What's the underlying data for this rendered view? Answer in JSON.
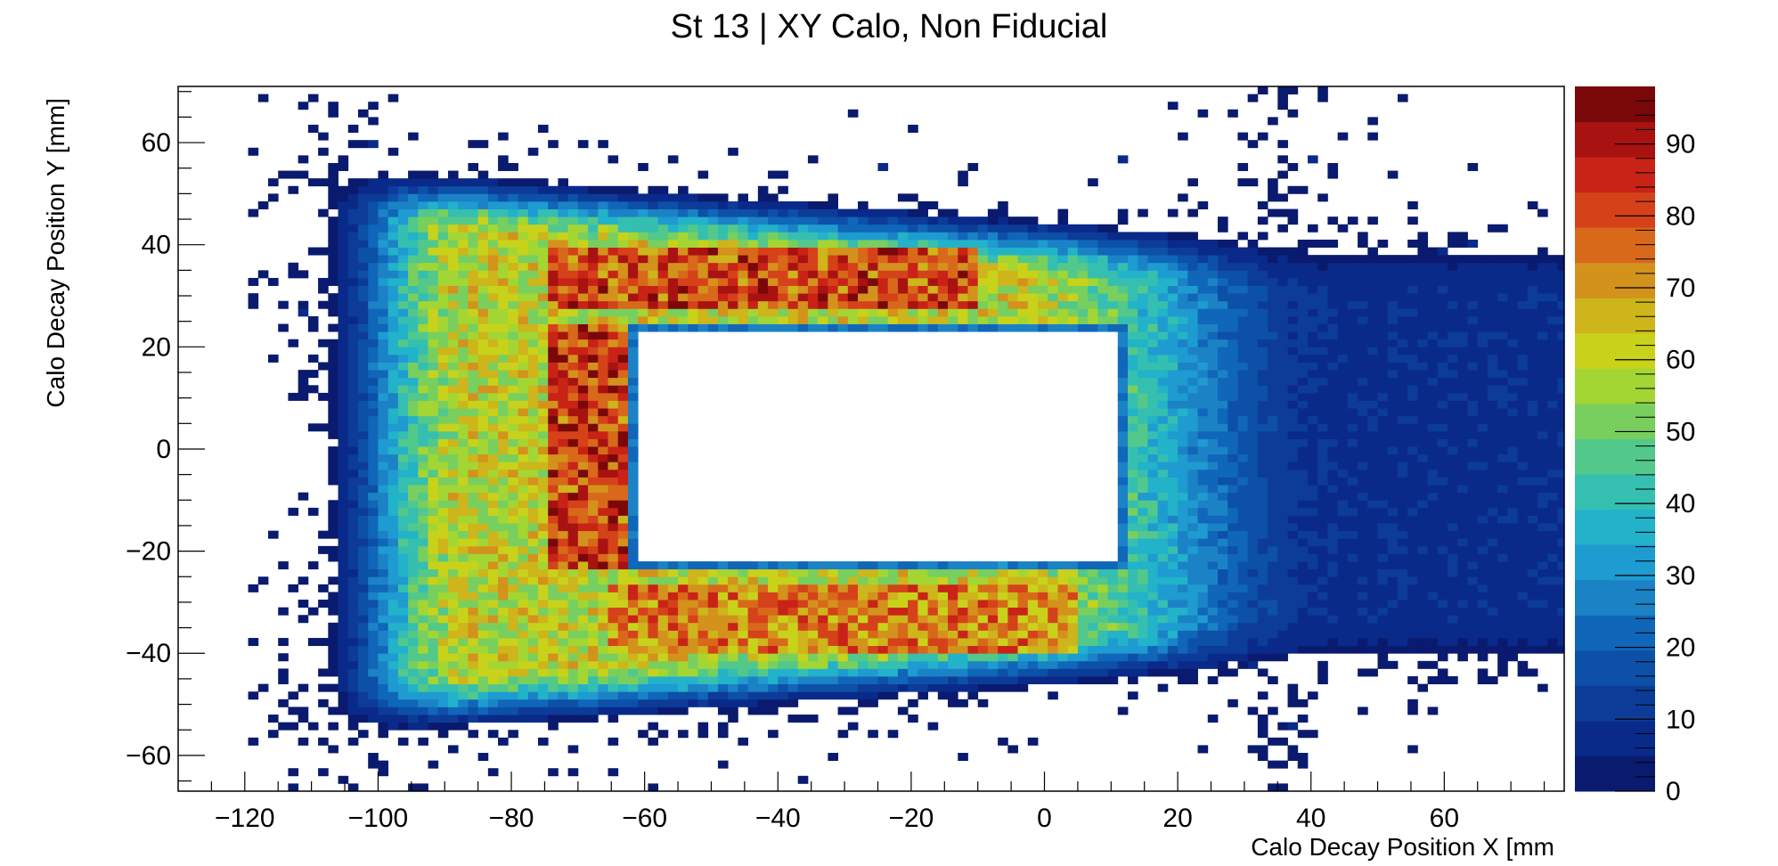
{
  "chart_data": {
    "type": "heatmap",
    "title": "St 13 | XY Calo, Non Fiducial",
    "xlabel": "Calo Decay Position X [mm",
    "ylabel": "Calo Decay Position Y [mm]",
    "xlim": [
      -130,
      78
    ],
    "ylim": [
      -67,
      71
    ],
    "bin_width_mm": 1.5,
    "zlim": [
      0,
      98
    ],
    "x_ticks": [
      -120,
      -100,
      -80,
      -60,
      -40,
      -20,
      0,
      20,
      40,
      60
    ],
    "x_tick_labels": [
      "−120",
      "−100",
      "−80",
      "−60",
      "−40",
      "−20",
      "0",
      "20",
      "40",
      "60"
    ],
    "y_ticks": [
      60,
      40,
      20,
      0,
      -20,
      -40,
      -60
    ],
    "y_tick_labels": [
      "60",
      "40",
      "20",
      "0",
      "−20",
      "−40",
      "−60"
    ],
    "z_ticks": [
      0,
      10,
      20,
      30,
      40,
      50,
      60,
      70,
      80,
      90
    ],
    "z_tick_labels": [
      "0",
      "10",
      "20",
      "30",
      "40",
      "50",
      "60",
      "70",
      "80",
      "90"
    ],
    "region": {
      "outer": {
        "x": [
          -107,
          35
        ],
        "y_left": [
          -55,
          54
        ],
        "y_right": [
          -42,
          40
        ]
      },
      "inner_hole": {
        "x": [
          -63,
          12
        ],
        "y": [
          -24,
          24
        ]
      },
      "peak_bands": [
        {
          "name": "top",
          "x": [
            -75,
            -10
          ],
          "y": [
            27,
            40
          ],
          "value": 80
        },
        {
          "name": "left",
          "x": [
            -75,
            -63
          ],
          "y": [
            -24,
            24
          ],
          "value": 82
        },
        {
          "name": "bottom",
          "x": [
            -65,
            5
          ],
          "y": [
            -40,
            -27
          ],
          "value": 72
        }
      ]
    },
    "palette": [
      "#0a1a6e",
      "#0a2a8a",
      "#0c3c98",
      "#0d50a8",
      "#1066b8",
      "#1b82c6",
      "#1e9bd0",
      "#22b2c9",
      "#35bfb0",
      "#52c88a",
      "#78cf5e",
      "#a3d633",
      "#c9d21a",
      "#cdb51b",
      "#d3921c",
      "#d8691a",
      "#d5421a",
      "#c82316",
      "#a81210",
      "#7a0808"
    ]
  }
}
